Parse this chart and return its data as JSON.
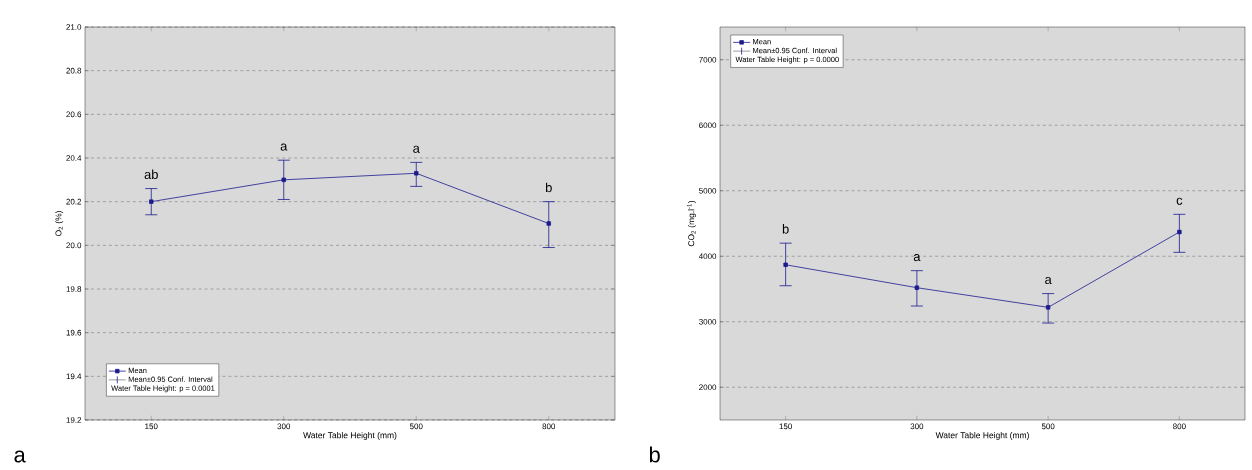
{
  "chart_data": [
    {
      "type": "line",
      "xlabel": "Water Table Height (mm)",
      "ylabel": "O$_{2}$ (%)",
      "categories": [
        "150",
        "300",
        "500",
        "800"
      ],
      "series": [
        {
          "name": "Mean",
          "color": "#1c1c8f",
          "values": [
            20.2,
            20.3,
            20.33,
            20.1
          ],
          "errors": [
            [
              20.14,
              20.26
            ],
            [
              20.21,
              20.39
            ],
            [
              20.27,
              20.38
            ],
            [
              19.99,
              20.2
            ]
          ]
        }
      ],
      "ylim": [
        19.2,
        21.0
      ],
      "yticks": [
        19.2,
        19.4,
        19.6,
        19.8,
        {
          "value": 20,
          "label": "20.0"
        },
        20.2,
        20.4,
        20.6,
        20.8,
        {
          "value": 21,
          "label": "21.0"
        }
      ],
      "grid": "y",
      "legend": "bottom left",
      "marker": "square",
      "line_style": "solid",
      "annotations": [
        "a",
        "Mean±0.95 Conf. Interval",
        "Water Table Height: p = 0.0001",
        "ab",
        "a",
        "a",
        "b"
      ]
    },
    {
      "type": "line",
      "xlabel": "Water Table Height (mm)",
      "ylabel": "CO$_{2}$ (mg.l$^{-1}$)",
      "categories": [
        "150",
        "300",
        "500",
        "800"
      ],
      "series": [
        {
          "name": "Mean",
          "color": "#1c1c8f",
          "values": [
            3870,
            3520,
            3220,
            4370
          ],
          "errors": [
            [
              3550,
              4200
            ],
            [
              3240,
              3780
            ],
            [
              2980,
              3430
            ],
            [
              4060,
              4640
            ]
          ]
        }
      ],
      "ylim": [
        1500,
        7500
      ],
      "yticks": [
        2000,
        3000,
        4000,
        5000,
        6000,
        7000
      ],
      "grid": "y",
      "legend": "top left",
      "marker": "square",
      "line_style": "solid",
      "annotations": [
        "b",
        "Mean±0.95 Conf. Interval",
        "Water Table Height: p = 0.0000",
        "b",
        "a",
        "a",
        "c"
      ]
    }
  ]
}
